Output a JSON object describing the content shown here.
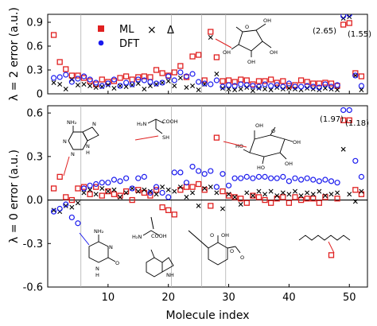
{
  "chart_data": [
    {
      "type": "scatter",
      "ylabel": "λ = 2 error (a.u.)",
      "xlim": [
        0,
        53
      ],
      "ylim": [
        0,
        1.0
      ],
      "yticks": [
        "0",
        "0.3",
        "0.6",
        "0.9"
      ],
      "grid": "vertical lines at x = 5.5, 20.5, 25.5, 29.5",
      "legend": {
        "position": "top-center",
        "entries": [
          "ML",
          "×",
          "Δ",
          "DFT"
        ]
      },
      "series": [
        {
          "name": "ML",
          "marker": "square",
          "color": "#e02020",
          "x": [
            1,
            2,
            3,
            4,
            5,
            6,
            7,
            8,
            9,
            10,
            11,
            12,
            13,
            14,
            15,
            16,
            17,
            18,
            19,
            20,
            21,
            22,
            23,
            24,
            25,
            26,
            27,
            28,
            29,
            30,
            31,
            32,
            33,
            34,
            35,
            36,
            37,
            38,
            39,
            40,
            41,
            42,
            43,
            44,
            45,
            46,
            47,
            48,
            49,
            50,
            51,
            52
          ],
          "y": [
            0.74,
            0.4,
            0.31,
            0.23,
            0.23,
            0.2,
            0.16,
            0.12,
            0.18,
            0.15,
            0.16,
            0.2,
            0.22,
            0.18,
            0.21,
            0.22,
            0.21,
            0.3,
            0.26,
            0.23,
            0.27,
            0.35,
            0.21,
            0.47,
            0.49,
            0.17,
            0.78,
            0.46,
            0.16,
            0.17,
            0.15,
            0.18,
            0.17,
            0.12,
            0.16,
            0.16,
            0.18,
            0.14,
            0.16,
            0.1,
            0.11,
            0.17,
            0.15,
            0.13,
            0.13,
            0.14,
            0.13,
            0.1,
            0.87,
            0.89,
            0.26,
            0.22
          ]
        },
        {
          "name": "×",
          "marker": "x",
          "color": "#000000",
          "x": [
            1,
            2,
            3,
            4,
            5,
            6,
            7,
            8,
            9,
            10,
            11,
            12,
            13,
            14,
            15,
            16,
            17,
            18,
            19,
            20,
            21,
            22,
            23,
            24,
            25,
            26,
            27,
            28,
            29,
            30,
            31,
            32,
            33,
            34,
            35,
            36,
            37,
            38,
            39,
            40,
            41,
            42,
            43,
            44,
            45,
            46,
            47,
            48,
            49,
            50,
            51,
            52
          ],
          "y": [
            0.14,
            0.12,
            0.06,
            0.18,
            0.11,
            0.12,
            0.1,
            0.08,
            0.09,
            0.11,
            0.07,
            0.1,
            0.09,
            0.11,
            0.13,
            0.06,
            0.1,
            0.12,
            0.14,
            0.16,
            0.1,
            0.2,
            0.08,
            0.1,
            0.05,
            0.12,
            0.71,
            0.25,
            0.07,
            0.06,
            0.05,
            0.06,
            0.08,
            0.04,
            0.07,
            0.06,
            0.05,
            0.08,
            0.06,
            0.07,
            0.06,
            0.05,
            0.07,
            0.06,
            0.05,
            0.07,
            0.06,
            0.05,
            0.95,
            0.97,
            0.23,
            0.05
          ]
        },
        {
          "name": "DFT",
          "marker": "circle",
          "color": "#1a1aee",
          "x": [
            1,
            2,
            3,
            4,
            5,
            6,
            7,
            8,
            9,
            10,
            11,
            12,
            13,
            14,
            15,
            16,
            17,
            18,
            19,
            20,
            21,
            22,
            23,
            24,
            25,
            26,
            27,
            28,
            29,
            30,
            31,
            32,
            33,
            34,
            35,
            36,
            37,
            38,
            39,
            40,
            41,
            42,
            43,
            44,
            45,
            46,
            47,
            48,
            49,
            50,
            51,
            52
          ],
          "y": [
            0.2,
            0.21,
            0.24,
            0.15,
            0.19,
            0.22,
            0.18,
            0.14,
            0.1,
            0.13,
            0.18,
            0.1,
            0.14,
            0.12,
            0.18,
            0.17,
            0.15,
            0.13,
            0.14,
            0.22,
            0.17,
            0.27,
            0.22,
            0.25,
            0.15,
            0.13,
            0.12,
            0.17,
            0.09,
            0.11,
            0.1,
            0.12,
            0.11,
            0.1,
            0.09,
            0.12,
            0.1,
            0.11,
            0.09,
            0.13,
            0.09,
            0.09,
            0.1,
            0.09,
            0.08,
            0.12,
            0.09,
            0.11,
            0.98,
            1.0,
            0.23,
            0.1
          ]
        }
      ],
      "annotations": [
        {
          "text": "(2.65)",
          "x": 49
        },
        {
          "text": "(1.55)",
          "x": 51
        }
      ]
    },
    {
      "type": "scatter",
      "xlabel": "Molecule index",
      "ylabel": "λ = 0 error (a.u.)",
      "xlim": [
        0,
        53
      ],
      "ylim": [
        -0.6,
        0.65
      ],
      "xticks": [
        "10",
        "20",
        "30",
        "40",
        "50"
      ],
      "yticks": [
        "-0.6",
        "-0.3",
        "0.0",
        "0.3",
        "0.6"
      ],
      "grid": "vertical lines at x = 5.5, 20.5, 25.5, 29.5; horizontal line at y = 0",
      "series": [
        {
          "name": "ML",
          "marker": "square",
          "color": "#e02020",
          "x": [
            1,
            2,
            3,
            4,
            5,
            6,
            7,
            8,
            9,
            10,
            11,
            12,
            13,
            14,
            15,
            16,
            17,
            18,
            19,
            20,
            21,
            22,
            23,
            24,
            25,
            26,
            27,
            28,
            29,
            30,
            31,
            32,
            33,
            34,
            35,
            36,
            37,
            38,
            39,
            40,
            41,
            42,
            43,
            44,
            45,
            46,
            47,
            48,
            49,
            50,
            51,
            52
          ],
          "y": [
            0.08,
            0.16,
            0.02,
            0.0,
            0.08,
            0.09,
            0.04,
            0.09,
            0.03,
            0.06,
            0.04,
            0.03,
            0.06,
            0.0,
            0.07,
            0.05,
            0.03,
            0.07,
            -0.05,
            -0.07,
            -0.1,
            0.07,
            0.09,
            0.09,
            0.11,
            0.07,
            -0.04,
            0.43,
            0.06,
            0.03,
            0.02,
            0.01,
            -0.02,
            0.03,
            0.02,
            0.0,
            -0.02,
            0.01,
            0.02,
            -0.02,
            0.02,
            0.0,
            0.01,
            0.01,
            -0.02,
            0.02,
            -0.38,
            0.01,
            0.55,
            0.55,
            0.07,
            0.04
          ]
        },
        {
          "name": "×",
          "marker": "x",
          "color": "#000000",
          "x": [
            1,
            2,
            3,
            4,
            5,
            6,
            7,
            8,
            9,
            10,
            11,
            12,
            13,
            14,
            15,
            16,
            17,
            18,
            19,
            20,
            21,
            22,
            23,
            24,
            25,
            26,
            27,
            28,
            29,
            30,
            31,
            32,
            33,
            34,
            35,
            36,
            37,
            38,
            39,
            40,
            41,
            42,
            43,
            44,
            45,
            46,
            47,
            48,
            49,
            50,
            51,
            52
          ],
          "y": [
            -0.07,
            -0.08,
            -0.04,
            -0.05,
            -0.02,
            0.05,
            0.07,
            0.04,
            0.08,
            0.06,
            0.07,
            0.02,
            0.05,
            0.08,
            0.06,
            0.07,
            0.06,
            0.04,
            0.09,
            0.07,
            0.06,
            0.09,
            0.02,
            0.05,
            -0.04,
            0.08,
            0.09,
            0.05,
            -0.06,
            0.04,
            0.02,
            -0.03,
            0.05,
            0.03,
            0.06,
            0.04,
            0.06,
            0.03,
            0.05,
            0.04,
            0.06,
            0.03,
            0.05,
            0.04,
            0.06,
            0.03,
            0.04,
            0.05,
            0.35,
            0.04,
            -0.01,
            0.06
          ]
        },
        {
          "name": "DFT",
          "marker": "circle",
          "color": "#1a1aee",
          "x": [
            1,
            2,
            3,
            4,
            5,
            6,
            7,
            8,
            9,
            10,
            11,
            12,
            13,
            14,
            15,
            16,
            17,
            18,
            19,
            20,
            21,
            22,
            23,
            24,
            25,
            26,
            27,
            28,
            29,
            30,
            31,
            32,
            33,
            34,
            35,
            36,
            37,
            38,
            39,
            40,
            41,
            42,
            43,
            44,
            45,
            46,
            47,
            48,
            49,
            50,
            51,
            52
          ],
          "y": [
            -0.08,
            -0.06,
            -0.03,
            -0.12,
            -0.16,
            0.08,
            0.1,
            0.11,
            0.12,
            0.12,
            0.14,
            0.13,
            0.15,
            0.08,
            0.15,
            0.16,
            0.05,
            0.09,
            0.05,
            0.02,
            0.19,
            0.19,
            0.12,
            0.23,
            0.2,
            0.18,
            0.2,
            0.09,
            0.18,
            0.1,
            0.15,
            0.15,
            0.16,
            0.15,
            0.16,
            0.16,
            0.15,
            0.15,
            0.16,
            0.13,
            0.15,
            0.14,
            0.15,
            0.14,
            0.13,
            0.14,
            0.13,
            0.12,
            0.62,
            0.62,
            0.27,
            0.16
          ]
        }
      ],
      "annotations": [
        {
          "text": "(1.97)",
          "x": 49
        },
        {
          "text": "(1.18)",
          "x": 51
        }
      ]
    }
  ],
  "structure_labels": {
    "fructose": [
      "O",
      "OH",
      "OH",
      "OH",
      "OH"
    ],
    "adenine": [
      "NH₂",
      "N",
      "N",
      "N",
      "N",
      "H"
    ],
    "cysteine": [
      "H₂N",
      "COOH",
      "SH"
    ],
    "glucose": [
      "O",
      "OH",
      "HO",
      "HO",
      "OH",
      "OH"
    ],
    "cytosine": [
      "NH₂",
      "N",
      "N",
      "O",
      "H"
    ],
    "aminoacid": [
      "H₂N",
      "COOH"
    ],
    "indoline": [
      "NH"
    ],
    "aspirin": [
      "O",
      "OH",
      "O",
      "O"
    ]
  }
}
